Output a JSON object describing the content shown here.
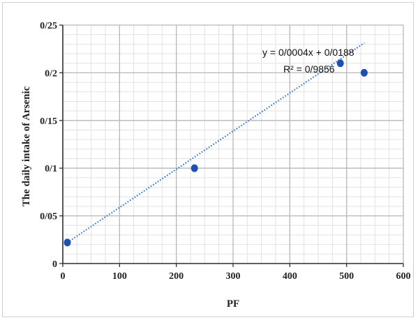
{
  "chart_data": {
    "type": "scatter",
    "xlabel": "PF",
    "ylabel": "The daily intake of Arsenic",
    "xlim": [
      0,
      600
    ],
    "ylim": [
      0,
      0.25
    ],
    "x_ticks": [
      0,
      100,
      200,
      300,
      400,
      500,
      600
    ],
    "x_tick_labels": [
      "0",
      "100",
      "200",
      "300",
      "400",
      "500",
      "600"
    ],
    "y_ticks": [
      0,
      0.05,
      0.1,
      0.15,
      0.2,
      0.25
    ],
    "y_tick_labels": [
      "0",
      "0/05",
      "0/1",
      "0/15",
      "0/2",
      "0/25"
    ],
    "grid": true,
    "marker_color": "#1f4fb0",
    "trendline_color": "#2f6fd0",
    "points": [
      {
        "x": 8,
        "y": 0.022
      },
      {
        "x": 232,
        "y": 0.1
      },
      {
        "x": 489,
        "y": 0.21
      },
      {
        "x": 531,
        "y": 0.2
      }
    ],
    "trendline": {
      "type": "linear",
      "x_range": [
        8,
        531
      ],
      "slope": 0.0004,
      "intercept": 0.0188,
      "equation_label": "y = 0/0004x + 0/0188",
      "r2_label": "R² = 0/9856"
    }
  }
}
